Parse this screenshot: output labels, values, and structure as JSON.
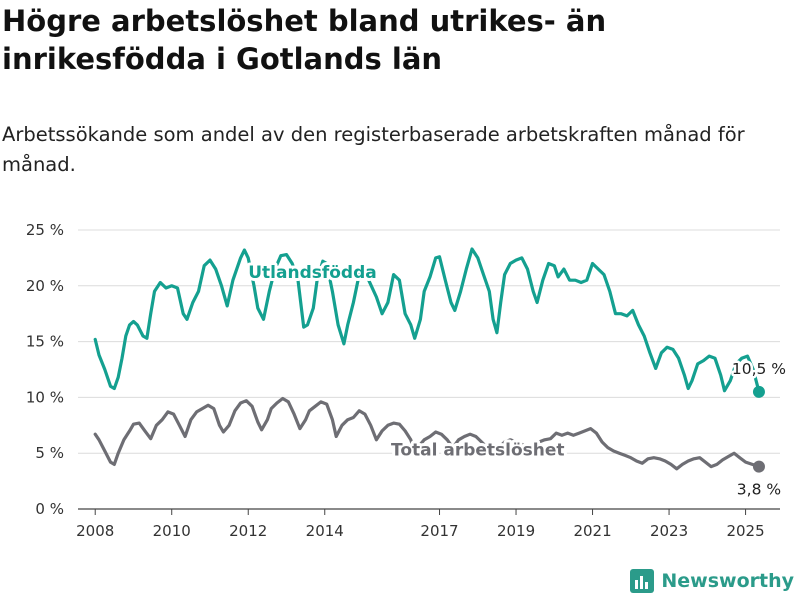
{
  "title": "Högre arbetslöshet bland utrikes- än inrikesfödda i Gotlands län",
  "subtitle": "Arbetssökande som andel av den registerbaserade arbetskraften månad för månad.",
  "brand": "Newsworthy",
  "colors": {
    "foreign": "#14a090",
    "total": "#6e6e74"
  },
  "chart_data": {
    "type": "line",
    "title": "Högre arbetslöshet bland utrikes- än inrikesfödda i Gotlands län",
    "subtitle": "Arbetssökande som andel av den registerbaserade arbetskraften månad för månad.",
    "xlabel": "",
    "ylabel": "",
    "ylim": [
      0,
      25
    ],
    "y_ticks": [
      0,
      5,
      10,
      15,
      20,
      25
    ],
    "y_tick_labels": [
      "0 %",
      "5 %",
      "10 %",
      "15 %",
      "20 %",
      "25 %"
    ],
    "x_ticks": [
      2008,
      2010,
      2012,
      2014,
      2017,
      2019,
      2021,
      2023,
      2025
    ],
    "x_tick_labels": [
      "2008",
      "2010",
      "2012",
      "2014",
      "2017",
      "2019",
      "2021",
      "2023",
      "2025"
    ],
    "grid": "horizontal",
    "series": [
      {
        "name": "Utlandsfödda",
        "color": "#14a090",
        "end_label": "10,5 %",
        "points": [
          [
            2008.0,
            15.2
          ],
          [
            2008.1,
            13.8
          ],
          [
            2008.25,
            12.5
          ],
          [
            2008.4,
            11.0
          ],
          [
            2008.5,
            10.8
          ],
          [
            2008.6,
            11.8
          ],
          [
            2008.7,
            13.5
          ],
          [
            2008.8,
            15.5
          ],
          [
            2008.9,
            16.5
          ],
          [
            2009.0,
            16.8
          ],
          [
            2009.1,
            16.5
          ],
          [
            2009.25,
            15.5
          ],
          [
            2009.35,
            15.3
          ],
          [
            2009.45,
            17.5
          ],
          [
            2009.55,
            19.5
          ],
          [
            2009.7,
            20.3
          ],
          [
            2009.85,
            19.8
          ],
          [
            2010.0,
            20.0
          ],
          [
            2010.15,
            19.8
          ],
          [
            2010.3,
            17.5
          ],
          [
            2010.4,
            17.0
          ],
          [
            2010.55,
            18.5
          ],
          [
            2010.7,
            19.5
          ],
          [
            2010.85,
            21.8
          ],
          [
            2011.0,
            22.3
          ],
          [
            2011.15,
            21.5
          ],
          [
            2011.3,
            20.0
          ],
          [
            2011.45,
            18.2
          ],
          [
            2011.6,
            20.5
          ],
          [
            2011.8,
            22.5
          ],
          [
            2011.9,
            23.2
          ],
          [
            2012.0,
            22.5
          ],
          [
            2012.15,
            20.0
          ],
          [
            2012.25,
            18.0
          ],
          [
            2012.4,
            17.0
          ],
          [
            2012.55,
            19.5
          ],
          [
            2012.7,
            21.5
          ],
          [
            2012.85,
            22.7
          ],
          [
            2013.0,
            22.8
          ],
          [
            2013.15,
            22.0
          ],
          [
            2013.3,
            20.5
          ],
          [
            2013.45,
            16.3
          ],
          [
            2013.55,
            16.5
          ],
          [
            2013.7,
            18.0
          ],
          [
            2013.8,
            20.5
          ],
          [
            2013.95,
            22.2
          ],
          [
            2014.05,
            22.0
          ],
          [
            2014.2,
            19.5
          ],
          [
            2014.35,
            16.5
          ],
          [
            2014.5,
            14.8
          ],
          [
            2014.6,
            16.5
          ],
          [
            2014.75,
            18.5
          ],
          [
            2014.9,
            21.0
          ],
          [
            2015.0,
            21.2
          ],
          [
            2015.15,
            20.5
          ],
          [
            2015.35,
            19.0
          ],
          [
            2015.5,
            17.5
          ],
          [
            2015.65,
            18.5
          ],
          [
            2015.8,
            21.0
          ],
          [
            2015.95,
            20.5
          ],
          [
            2016.1,
            17.5
          ],
          [
            2016.25,
            16.5
          ],
          [
            2016.35,
            15.3
          ],
          [
            2016.5,
            17.0
          ],
          [
            2016.6,
            19.5
          ],
          [
            2016.75,
            20.8
          ],
          [
            2016.9,
            22.5
          ],
          [
            2017.0,
            22.6
          ],
          [
            2017.15,
            20.5
          ],
          [
            2017.3,
            18.5
          ],
          [
            2017.4,
            17.8
          ],
          [
            2017.55,
            19.5
          ],
          [
            2017.7,
            21.5
          ],
          [
            2017.85,
            23.3
          ],
          [
            2018.0,
            22.5
          ],
          [
            2018.15,
            21.0
          ],
          [
            2018.3,
            19.5
          ],
          [
            2018.4,
            17.0
          ],
          [
            2018.5,
            15.8
          ],
          [
            2018.6,
            18.5
          ],
          [
            2018.7,
            21.0
          ],
          [
            2018.85,
            22.0
          ],
          [
            2019.0,
            22.3
          ],
          [
            2019.15,
            22.5
          ],
          [
            2019.3,
            21.5
          ],
          [
            2019.45,
            19.5
          ],
          [
            2019.55,
            18.5
          ],
          [
            2019.7,
            20.5
          ],
          [
            2019.85,
            22.0
          ],
          [
            2020.0,
            21.8
          ],
          [
            2020.1,
            20.8
          ],
          [
            2020.25,
            21.5
          ],
          [
            2020.4,
            20.5
          ],
          [
            2020.55,
            20.5
          ],
          [
            2020.7,
            20.3
          ],
          [
            2020.85,
            20.5
          ],
          [
            2021.0,
            22.0
          ],
          [
            2021.15,
            21.5
          ],
          [
            2021.3,
            21.0
          ],
          [
            2021.45,
            19.5
          ],
          [
            2021.6,
            17.5
          ],
          [
            2021.75,
            17.5
          ],
          [
            2021.9,
            17.3
          ],
          [
            2022.05,
            17.8
          ],
          [
            2022.2,
            16.5
          ],
          [
            2022.35,
            15.5
          ],
          [
            2022.5,
            14.0
          ],
          [
            2022.65,
            12.6
          ],
          [
            2022.8,
            14.0
          ],
          [
            2022.95,
            14.5
          ],
          [
            2023.1,
            14.3
          ],
          [
            2023.25,
            13.5
          ],
          [
            2023.4,
            12.0
          ],
          [
            2023.5,
            10.8
          ],
          [
            2023.6,
            11.5
          ],
          [
            2023.75,
            13.0
          ],
          [
            2023.9,
            13.3
          ],
          [
            2024.05,
            13.7
          ],
          [
            2024.2,
            13.5
          ],
          [
            2024.35,
            12.0
          ],
          [
            2024.45,
            10.6
          ],
          [
            2024.6,
            11.5
          ],
          [
            2024.75,
            13.0
          ],
          [
            2024.9,
            13.5
          ],
          [
            2025.05,
            13.7
          ],
          [
            2025.2,
            12.5
          ],
          [
            2025.35,
            10.5
          ]
        ]
      },
      {
        "name": "Total arbetslöshet",
        "color": "#6e6e74",
        "end_label": "3,8 %",
        "points": [
          [
            2008.0,
            6.7
          ],
          [
            2008.1,
            6.2
          ],
          [
            2008.25,
            5.2
          ],
          [
            2008.4,
            4.2
          ],
          [
            2008.5,
            4.0
          ],
          [
            2008.6,
            5.0
          ],
          [
            2008.75,
            6.2
          ],
          [
            2008.9,
            7.0
          ],
          [
            2009.0,
            7.6
          ],
          [
            2009.15,
            7.7
          ],
          [
            2009.3,
            7.0
          ],
          [
            2009.45,
            6.3
          ],
          [
            2009.6,
            7.5
          ],
          [
            2009.75,
            8.0
          ],
          [
            2009.9,
            8.7
          ],
          [
            2010.05,
            8.5
          ],
          [
            2010.2,
            7.5
          ],
          [
            2010.35,
            6.5
          ],
          [
            2010.5,
            8.0
          ],
          [
            2010.65,
            8.7
          ],
          [
            2010.8,
            9.0
          ],
          [
            2010.95,
            9.3
          ],
          [
            2011.1,
            9.0
          ],
          [
            2011.25,
            7.5
          ],
          [
            2011.35,
            6.9
          ],
          [
            2011.5,
            7.5
          ],
          [
            2011.65,
            8.8
          ],
          [
            2011.8,
            9.5
          ],
          [
            2011.95,
            9.7
          ],
          [
            2012.1,
            9.2
          ],
          [
            2012.25,
            7.8
          ],
          [
            2012.35,
            7.1
          ],
          [
            2012.5,
            8.0
          ],
          [
            2012.6,
            9.0
          ],
          [
            2012.75,
            9.5
          ],
          [
            2012.9,
            9.9
          ],
          [
            2013.05,
            9.6
          ],
          [
            2013.2,
            8.5
          ],
          [
            2013.35,
            7.2
          ],
          [
            2013.5,
            8.0
          ],
          [
            2013.6,
            8.8
          ],
          [
            2013.75,
            9.2
          ],
          [
            2013.9,
            9.6
          ],
          [
            2014.05,
            9.4
          ],
          [
            2014.2,
            8.0
          ],
          [
            2014.3,
            6.5
          ],
          [
            2014.45,
            7.5
          ],
          [
            2014.6,
            8.0
          ],
          [
            2014.75,
            8.2
          ],
          [
            2014.9,
            8.8
          ],
          [
            2015.05,
            8.5
          ],
          [
            2015.2,
            7.5
          ],
          [
            2015.35,
            6.2
          ],
          [
            2015.5,
            7.0
          ],
          [
            2015.65,
            7.5
          ],
          [
            2015.8,
            7.7
          ],
          [
            2015.95,
            7.6
          ],
          [
            2016.1,
            7.0
          ],
          [
            2016.25,
            6.2
          ],
          [
            2016.35,
            5.1
          ],
          [
            2016.5,
            5.8
          ],
          [
            2016.6,
            6.2
          ],
          [
            2016.75,
            6.5
          ],
          [
            2016.9,
            6.9
          ],
          [
            2017.05,
            6.7
          ],
          [
            2017.2,
            6.2
          ],
          [
            2017.35,
            5.5
          ],
          [
            2017.5,
            6.2
          ],
          [
            2017.65,
            6.5
          ],
          [
            2017.8,
            6.7
          ],
          [
            2017.95,
            6.5
          ],
          [
            2018.1,
            6.0
          ],
          [
            2018.25,
            5.5
          ],
          [
            2018.4,
            5.0
          ],
          [
            2018.55,
            5.5
          ],
          [
            2018.7,
            6.0
          ],
          [
            2018.85,
            6.2
          ],
          [
            2019.0,
            6.0
          ],
          [
            2019.15,
            5.8
          ],
          [
            2019.3,
            5.5
          ],
          [
            2019.45,
            5.6
          ],
          [
            2019.6,
            6.0
          ],
          [
            2019.75,
            6.2
          ],
          [
            2019.9,
            6.3
          ],
          [
            2020.05,
            6.8
          ],
          [
            2020.2,
            6.6
          ],
          [
            2020.35,
            6.8
          ],
          [
            2020.5,
            6.6
          ],
          [
            2020.65,
            6.8
          ],
          [
            2020.8,
            7.0
          ],
          [
            2020.95,
            7.2
          ],
          [
            2021.1,
            6.8
          ],
          [
            2021.25,
            6.0
          ],
          [
            2021.4,
            5.5
          ],
          [
            2021.55,
            5.2
          ],
          [
            2021.7,
            5.0
          ],
          [
            2021.85,
            4.8
          ],
          [
            2022.0,
            4.6
          ],
          [
            2022.15,
            4.3
          ],
          [
            2022.3,
            4.1
          ],
          [
            2022.45,
            4.5
          ],
          [
            2022.6,
            4.6
          ],
          [
            2022.75,
            4.5
          ],
          [
            2022.9,
            4.3
          ],
          [
            2023.05,
            4.0
          ],
          [
            2023.2,
            3.6
          ],
          [
            2023.35,
            4.0
          ],
          [
            2023.5,
            4.3
          ],
          [
            2023.65,
            4.5
          ],
          [
            2023.8,
            4.6
          ],
          [
            2023.95,
            4.2
          ],
          [
            2024.1,
            3.8
          ],
          [
            2024.25,
            4.0
          ],
          [
            2024.4,
            4.4
          ],
          [
            2024.55,
            4.7
          ],
          [
            2024.7,
            5.0
          ],
          [
            2024.85,
            4.6
          ],
          [
            2025.0,
            4.2
          ],
          [
            2025.35,
            3.8
          ]
        ]
      }
    ]
  }
}
